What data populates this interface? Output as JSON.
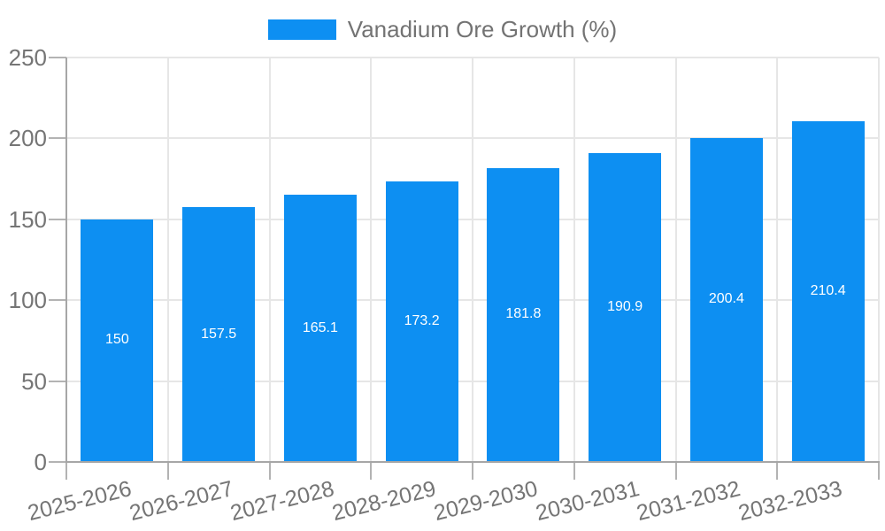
{
  "legend": {
    "label": "Vanadium Ore Growth (%)"
  },
  "colors": {
    "bar": "#0d8ff2",
    "grid": "#e6e6e6",
    "axis": "#a6a6a6",
    "tick": "#b3b3b3",
    "tick_label": "#757575",
    "legend_text": "#737373",
    "value_label": "#ffffff",
    "background": "#ffffff"
  },
  "chart_data": {
    "type": "bar",
    "title": "Vanadium Ore Growth (%)",
    "series": [
      {
        "name": "Vanadium Ore Growth (%)",
        "values": [
          150,
          157.5,
          165.1,
          173.2,
          181.8,
          190.9,
          200.4,
          210.4
        ]
      }
    ],
    "categories": [
      "2025-2026",
      "2026-2027",
      "2027-2028",
      "2028-2029",
      "2029-2030",
      "2030-2031",
      "2031-2032",
      "2032-2033"
    ],
    "value_labels": [
      "150",
      "157.5",
      "165.1",
      "173.2",
      "181.8",
      "190.9",
      "200.4",
      "210.4"
    ],
    "xlabel": "",
    "ylabel": "",
    "ylim": [
      0,
      250
    ],
    "yticks": [
      0,
      50,
      100,
      150,
      200,
      250
    ],
    "grid": true,
    "legend_position": "top-center",
    "x_tick_rotation_deg": -14,
    "value_label_position": "inside-center"
  }
}
